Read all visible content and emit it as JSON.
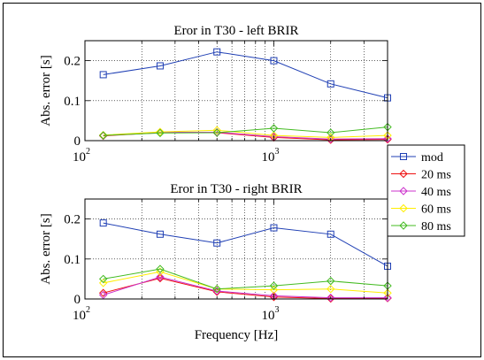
{
  "chart_data": [
    {
      "type": "line",
      "title": "Eror in T30 - left BRIR",
      "xlabel": "",
      "ylabel": "Abs. error [s]",
      "x_scale": "log",
      "xlim": [
        100,
        4000
      ],
      "ylim": [
        0,
        0.25
      ],
      "x_ticks": [
        100,
        1000
      ],
      "x_tick_labels": [
        {
          "base": "10",
          "exp": "2"
        },
        {
          "base": "10",
          "exp": "3"
        }
      ],
      "y_ticks": [
        0,
        0.1,
        0.2
      ],
      "y_tick_labels": [
        "0",
        "0.1",
        "0.2"
      ],
      "grid": true,
      "x": [
        125,
        250,
        500,
        1000,
        2000,
        4000
      ],
      "series": [
        {
          "name": "mod",
          "color": "#1f3fb4",
          "marker": "square",
          "values": [
            0.165,
            0.187,
            0.222,
            0.2,
            0.142,
            0.107
          ]
        },
        {
          "name": "20 ms",
          "color": "#ee1111",
          "marker": "diamond",
          "values": [
            0.012,
            0.02,
            0.02,
            0.008,
            0.002,
            0.003
          ]
        },
        {
          "name": "40 ms",
          "color": "#cc33cc",
          "marker": "diamond",
          "values": [
            0.013,
            0.021,
            0.021,
            0.01,
            0.004,
            0.005
          ]
        },
        {
          "name": "60 ms",
          "color": "#ffee00",
          "marker": "diamond",
          "values": [
            0.014,
            0.022,
            0.026,
            0.013,
            0.008,
            0.013
          ]
        },
        {
          "name": "80 ms",
          "color": "#44bb22",
          "marker": "diamond",
          "values": [
            0.013,
            0.019,
            0.02,
            0.031,
            0.02,
            0.034
          ]
        }
      ]
    },
    {
      "type": "line",
      "title": "Eror in T30 - right BRIR",
      "xlabel": "Frequency [Hz]",
      "ylabel": "Abs. error [s]",
      "x_scale": "log",
      "xlim": [
        100,
        4000
      ],
      "ylim": [
        0,
        0.25
      ],
      "x_ticks": [
        100,
        1000
      ],
      "x_tick_labels": [
        {
          "base": "10",
          "exp": "2"
        },
        {
          "base": "10",
          "exp": "3"
        }
      ],
      "y_ticks": [
        0,
        0.1,
        0.2
      ],
      "y_tick_labels": [
        "0",
        "0.1",
        "0.2"
      ],
      "grid": true,
      "x": [
        125,
        250,
        500,
        1000,
        2000,
        4000
      ],
      "series": [
        {
          "name": "mod",
          "color": "#1f3fb4",
          "marker": "square",
          "values": [
            0.19,
            0.162,
            0.14,
            0.178,
            0.162,
            0.082
          ]
        },
        {
          "name": "20 ms",
          "color": "#ee1111",
          "marker": "diamond",
          "values": [
            0.015,
            0.052,
            0.018,
            0.005,
            0.001,
            0.002
          ]
        },
        {
          "name": "40 ms",
          "color": "#cc33cc",
          "marker": "diamond",
          "values": [
            0.01,
            0.055,
            0.02,
            0.008,
            0.003,
            0.003
          ]
        },
        {
          "name": "60 ms",
          "color": "#ffee00",
          "marker": "diamond",
          "values": [
            0.04,
            0.068,
            0.025,
            0.023,
            0.025,
            0.015
          ]
        },
        {
          "name": "80 ms",
          "color": "#44bb22",
          "marker": "diamond",
          "values": [
            0.05,
            0.075,
            0.025,
            0.033,
            0.045,
            0.033
          ]
        }
      ]
    }
  ],
  "legend": {
    "placement": "right",
    "entries": [
      "mod",
      "20 ms",
      "40 ms",
      "60 ms",
      "80 ms"
    ]
  }
}
